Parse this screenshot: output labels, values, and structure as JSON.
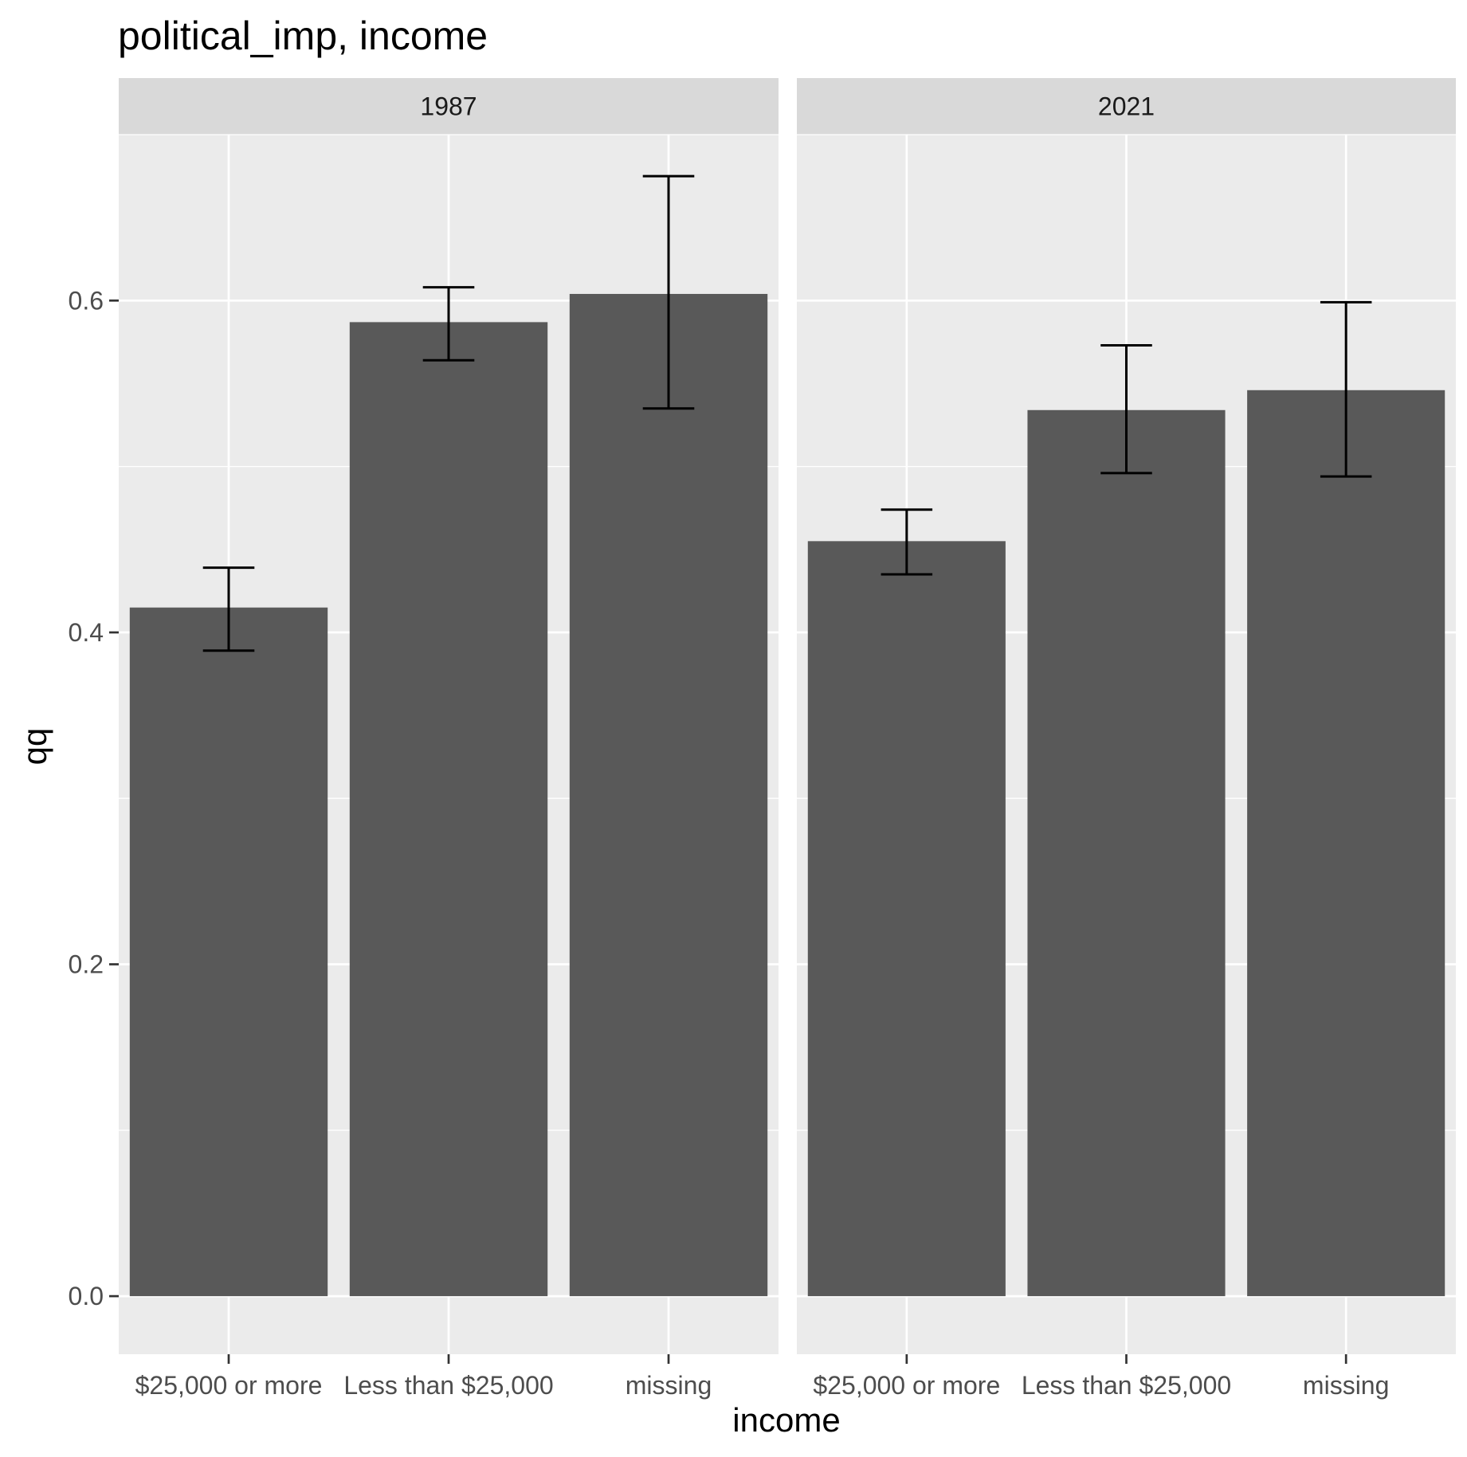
{
  "chart_data": {
    "type": "bar",
    "title": "political_imp, income",
    "xlabel": "income",
    "ylabel": "qq",
    "ylim": [
      -0.035,
      0.7
    ],
    "yticks": [
      0.0,
      0.2,
      0.4,
      0.6
    ],
    "ytick_labels": [
      "0.0",
      "0.2",
      "0.4",
      "0.6"
    ],
    "categories": [
      "$25,000 or more",
      "Less than $25,000",
      "missing"
    ],
    "grid": true,
    "colors": {
      "bar": "#595959",
      "panel_bg": "#ebebeb",
      "grid": "#ffffff",
      "strip_bg": "#d9d9d9",
      "errorbar": "#000000"
    },
    "facets": [
      {
        "label": "1987",
        "values": [
          0.415,
          0.587,
          0.604
        ],
        "error_low": [
          0.389,
          0.564,
          0.535
        ],
        "error_high": [
          0.439,
          0.608,
          0.675
        ]
      },
      {
        "label": "2021",
        "values": [
          0.455,
          0.534,
          0.546
        ],
        "error_low": [
          0.435,
          0.496,
          0.494
        ],
        "error_high": [
          0.474,
          0.573,
          0.599
        ]
      }
    ]
  }
}
